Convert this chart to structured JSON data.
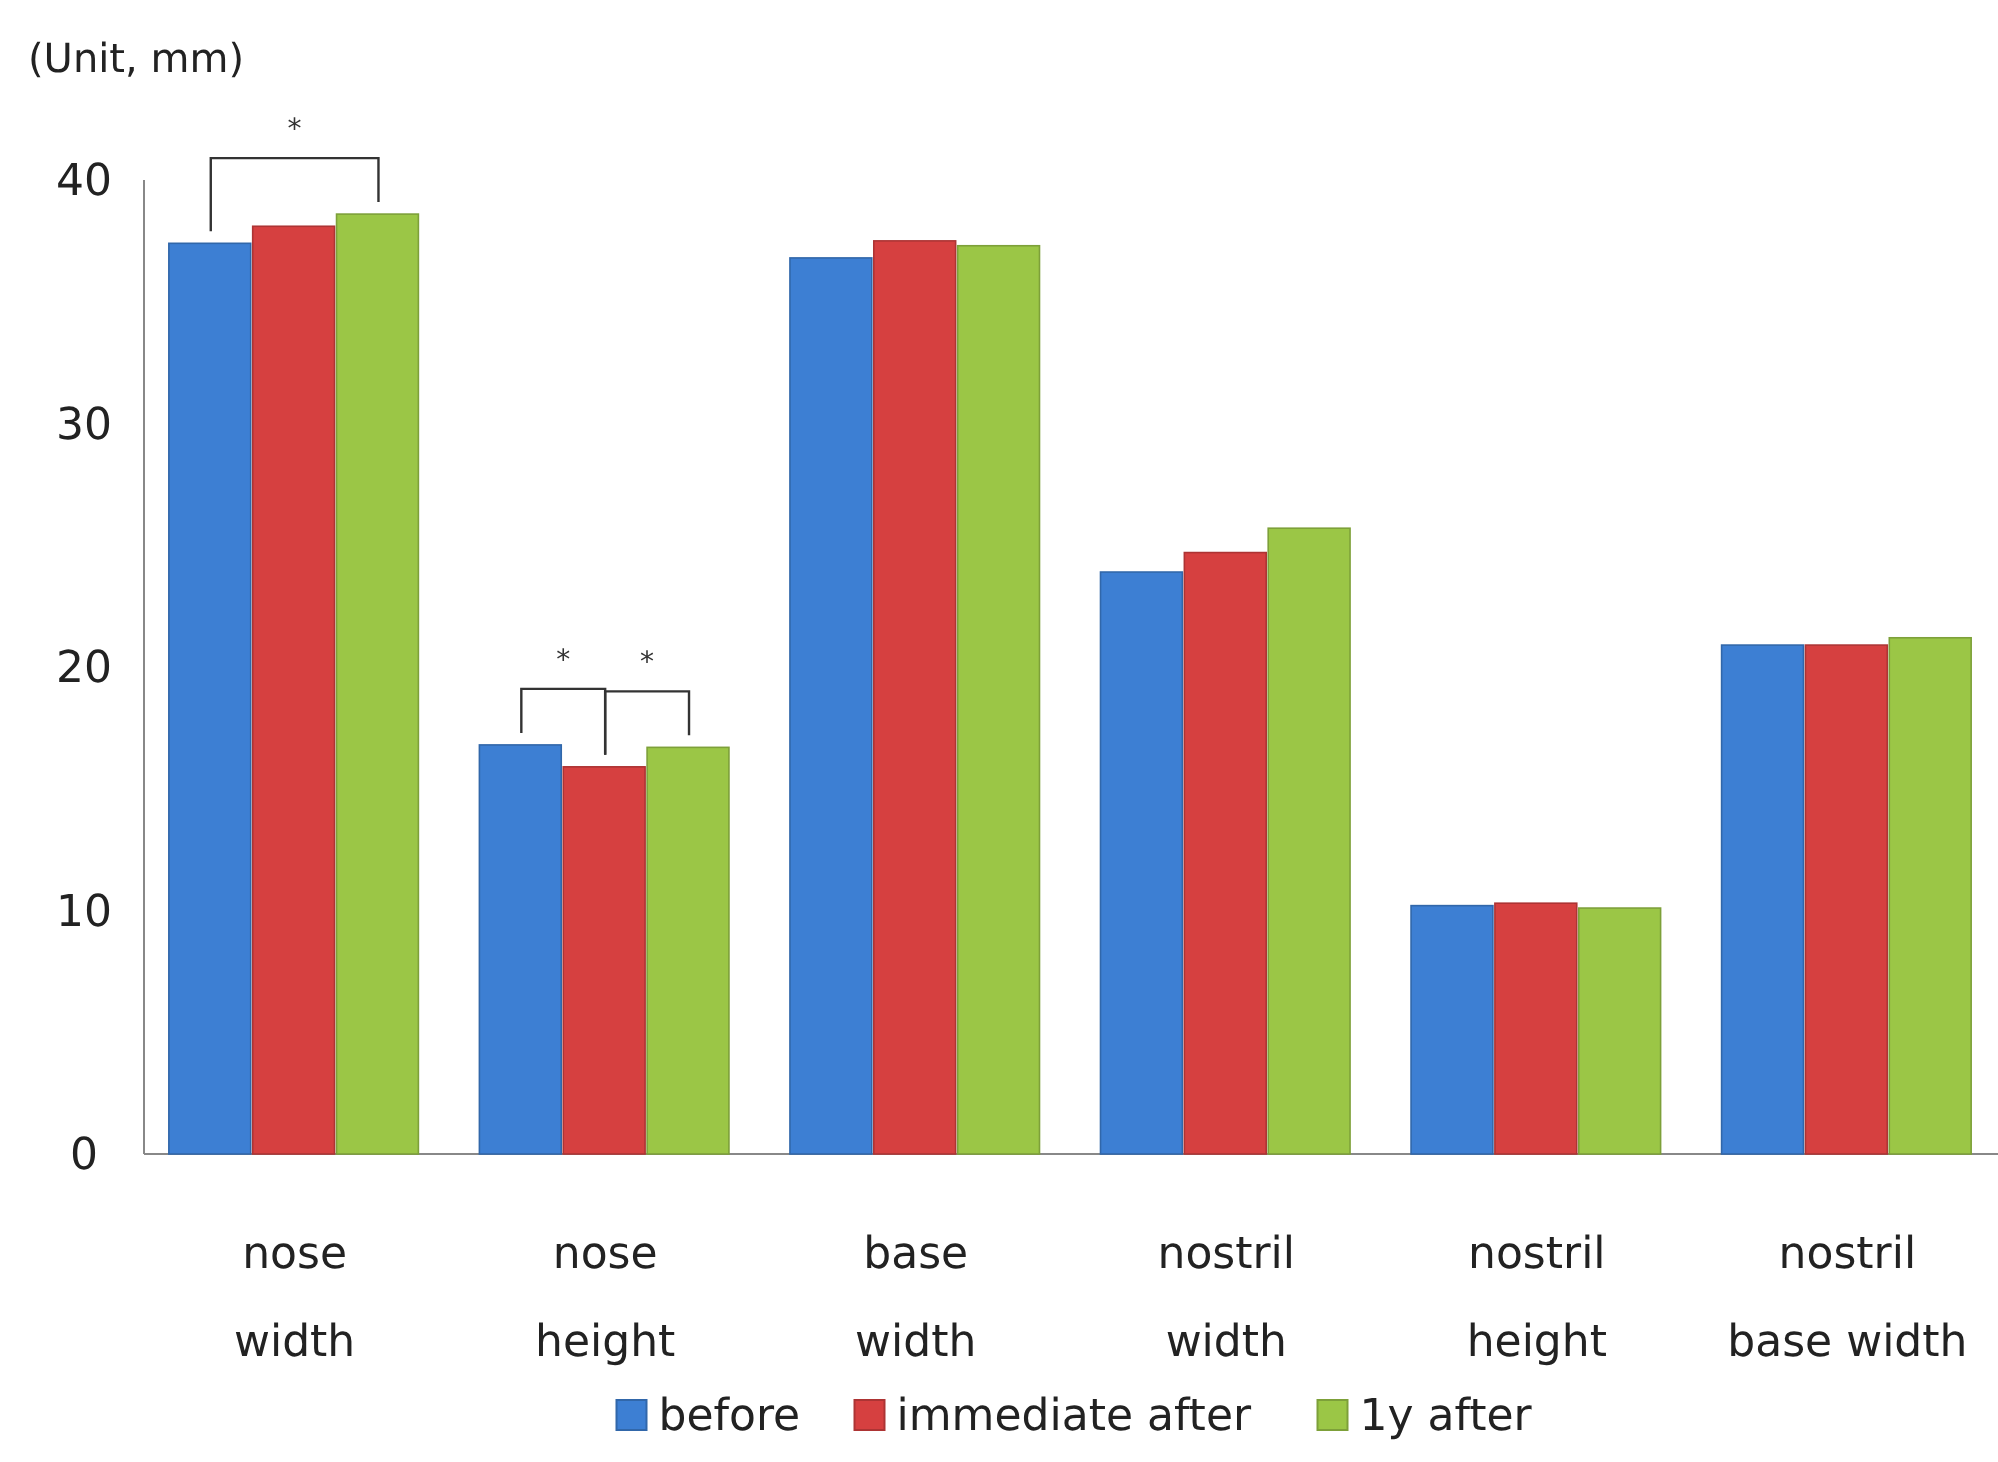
{
  "chart_data": {
    "type": "bar",
    "categories": [
      "nose width",
      "nose height",
      "base width",
      "nostril width",
      "nostril height",
      "nostril base width"
    ],
    "series": [
      {
        "name": "before",
        "color": "#3d7fd3",
        "values": [
          37.4,
          16.8,
          36.8,
          23.9,
          10.2,
          20.9
        ]
      },
      {
        "name": "immediate after",
        "color": "#d64040",
        "values": [
          38.1,
          15.9,
          37.5,
          24.7,
          10.3,
          20.9
        ]
      },
      {
        "name": "1y after",
        "color": "#9bc646",
        "values": [
          38.6,
          16.7,
          37.3,
          25.7,
          10.1,
          21.2
        ]
      }
    ],
    "ylim": [
      0,
      40
    ],
    "yticks": [
      0,
      10,
      20,
      30,
      40
    ],
    "grid": false,
    "legend": "bottom",
    "annotations": [
      "(Unit, mm)",
      "*",
      "*",
      "*"
    ]
  }
}
